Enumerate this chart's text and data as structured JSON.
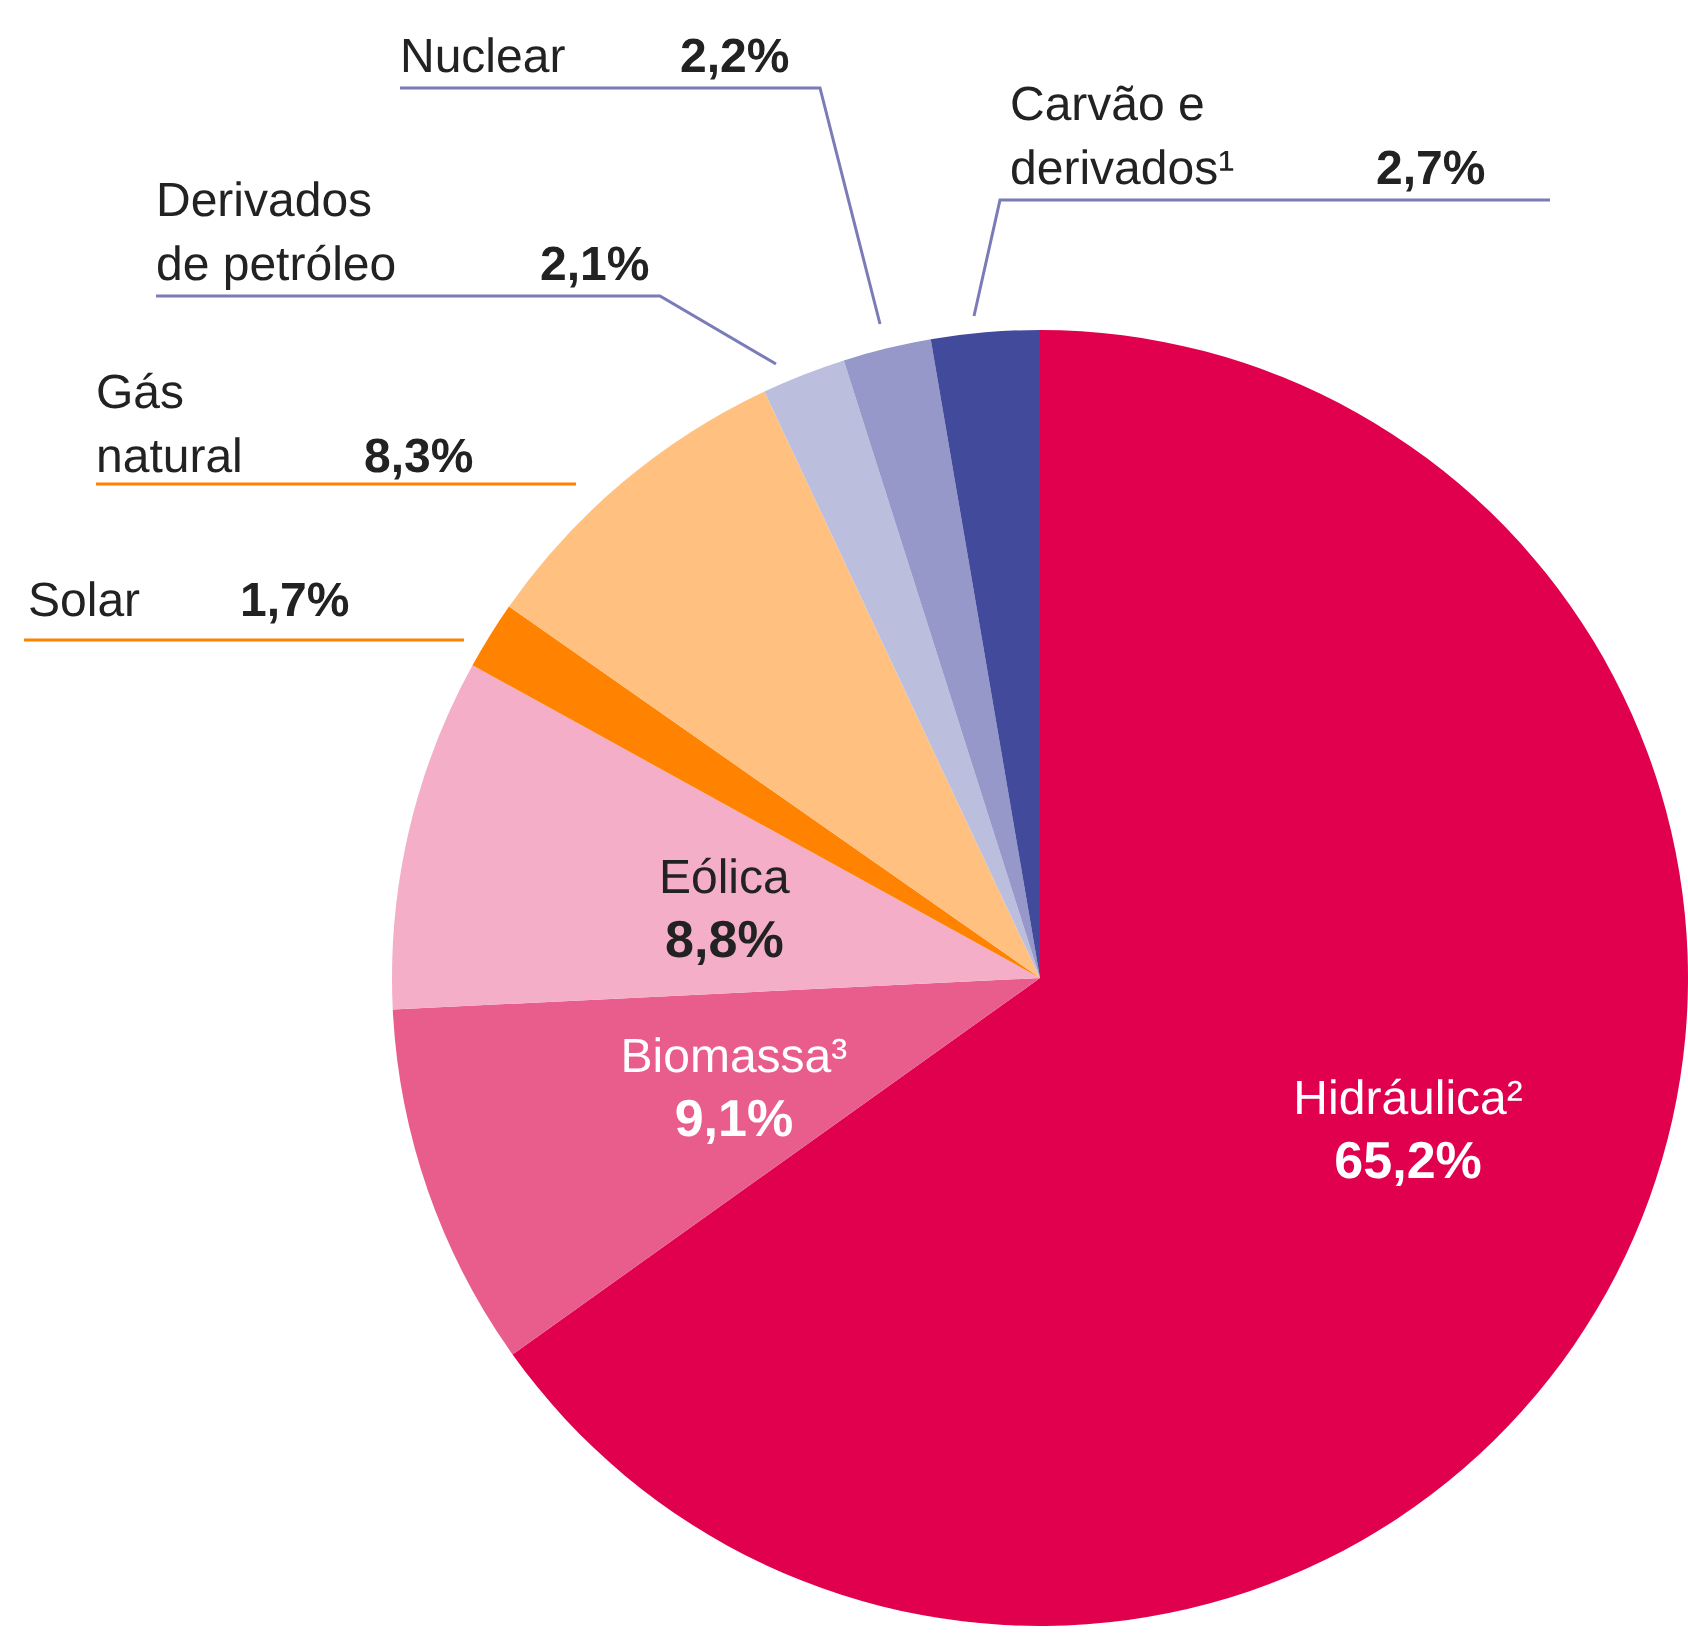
{
  "chart_data": {
    "type": "pie",
    "categories": [
      "Hidráulica²",
      "Biomassa³",
      "Eólica",
      "Solar",
      "Gás natural",
      "Derivados de petróleo",
      "Nuclear",
      "Carvão e derivados¹"
    ],
    "values": [
      65.2,
      9.1,
      8.8,
      1.7,
      8.3,
      2.1,
      2.2,
      2.7
    ],
    "value_labels": [
      "65,2%",
      "9,1%",
      "8,8%",
      "1,7%",
      "8,3%",
      "2,1%",
      "2,2%",
      "2,7%"
    ],
    "colors": [
      "#e0004d",
      "#e95d8c",
      "#f4aec8",
      "#ff8200",
      "#ffc080",
      "#bcbedd",
      "#9598c9",
      "#424b9b"
    ],
    "legend": false
  }
}
